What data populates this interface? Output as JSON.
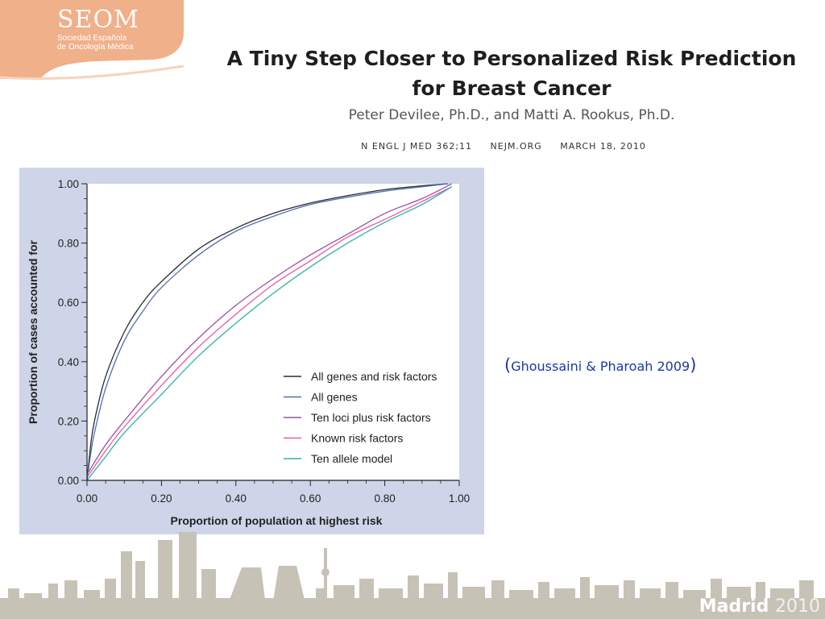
{
  "logo": {
    "acronym": "SEOM",
    "subtitle_line1": "Sociedad Española",
    "subtitle_line2": "de Oncología Médica"
  },
  "article": {
    "title_line1": "A Tiny Step Closer to Personalized Risk Prediction",
    "title_line2": "for Breast Cancer",
    "authors": "Peter Devilee, Ph.D., and Matti A. Rookus, Ph.D.",
    "citation": [
      "N ENGL J MED 362;11",
      "NEJM.ORG",
      "MARCH 18, 2010"
    ]
  },
  "reference": {
    "open": "(",
    "text": "Ghoussaini & Pharoah 2009",
    "close": ")"
  },
  "footer": {
    "city": "Madrid",
    "year": "2010"
  },
  "colors": {
    "logo_orange": "#f0b08a",
    "skyline_gray": "#c6c2b6",
    "panel_bg": "#cfd5e8",
    "reference_blue": "#1a3a9e"
  },
  "chart_data": {
    "type": "line",
    "title": "",
    "xlabel": "Proportion of population at highest risk",
    "ylabel": "Proportion of cases accounted for",
    "xlim": [
      0,
      1
    ],
    "ylim": [
      0,
      1
    ],
    "xticks": [
      "0.00",
      "0.20",
      "0.40",
      "0.60",
      "0.80",
      "1.00"
    ],
    "yticks": [
      "0.00",
      "0.20",
      "0.40",
      "0.60",
      "0.80",
      "1.00"
    ],
    "legend_position": "bottom-right",
    "series": [
      {
        "name": "All genes and risk factors",
        "color": "#2b2b2b",
        "x": [
          0,
          0.01,
          0.02,
          0.05,
          0.1,
          0.15,
          0.2,
          0.3,
          0.4,
          0.5,
          0.6,
          0.7,
          0.8,
          0.9,
          0.97
        ],
        "y": [
          0,
          0.12,
          0.2,
          0.35,
          0.5,
          0.6,
          0.67,
          0.78,
          0.85,
          0.9,
          0.935,
          0.96,
          0.98,
          0.993,
          1.0
        ]
      },
      {
        "name": "All genes",
        "color": "#4f6fb5",
        "x": [
          0,
          0.01,
          0.02,
          0.05,
          0.1,
          0.15,
          0.2,
          0.3,
          0.4,
          0.5,
          0.6,
          0.7,
          0.8,
          0.9,
          0.97
        ],
        "y": [
          0,
          0.09,
          0.16,
          0.31,
          0.47,
          0.57,
          0.65,
          0.76,
          0.84,
          0.89,
          0.93,
          0.955,
          0.975,
          0.99,
          1.0
        ]
      },
      {
        "name": "Ten loci plus risk factors",
        "color": "#9b4fa8",
        "x": [
          0,
          0.05,
          0.1,
          0.2,
          0.3,
          0.4,
          0.5,
          0.6,
          0.7,
          0.8,
          0.9,
          0.98
        ],
        "y": [
          0.02,
          0.12,
          0.2,
          0.35,
          0.48,
          0.59,
          0.68,
          0.76,
          0.83,
          0.9,
          0.95,
          1.0
        ]
      },
      {
        "name": "Known risk factors",
        "color": "#e65aa6",
        "x": [
          0,
          0.05,
          0.1,
          0.2,
          0.3,
          0.4,
          0.5,
          0.6,
          0.7,
          0.8,
          0.9,
          0.98
        ],
        "y": [
          0.01,
          0.1,
          0.18,
          0.32,
          0.45,
          0.56,
          0.66,
          0.74,
          0.82,
          0.88,
          0.94,
          0.99
        ]
      },
      {
        "name": "Ten allele model",
        "color": "#2ab3a6",
        "x": [
          0,
          0.05,
          0.1,
          0.2,
          0.3,
          0.4,
          0.5,
          0.6,
          0.7,
          0.8,
          0.9,
          0.98
        ],
        "y": [
          0,
          0.08,
          0.16,
          0.29,
          0.42,
          0.53,
          0.63,
          0.72,
          0.8,
          0.87,
          0.93,
          0.99
        ]
      }
    ]
  }
}
